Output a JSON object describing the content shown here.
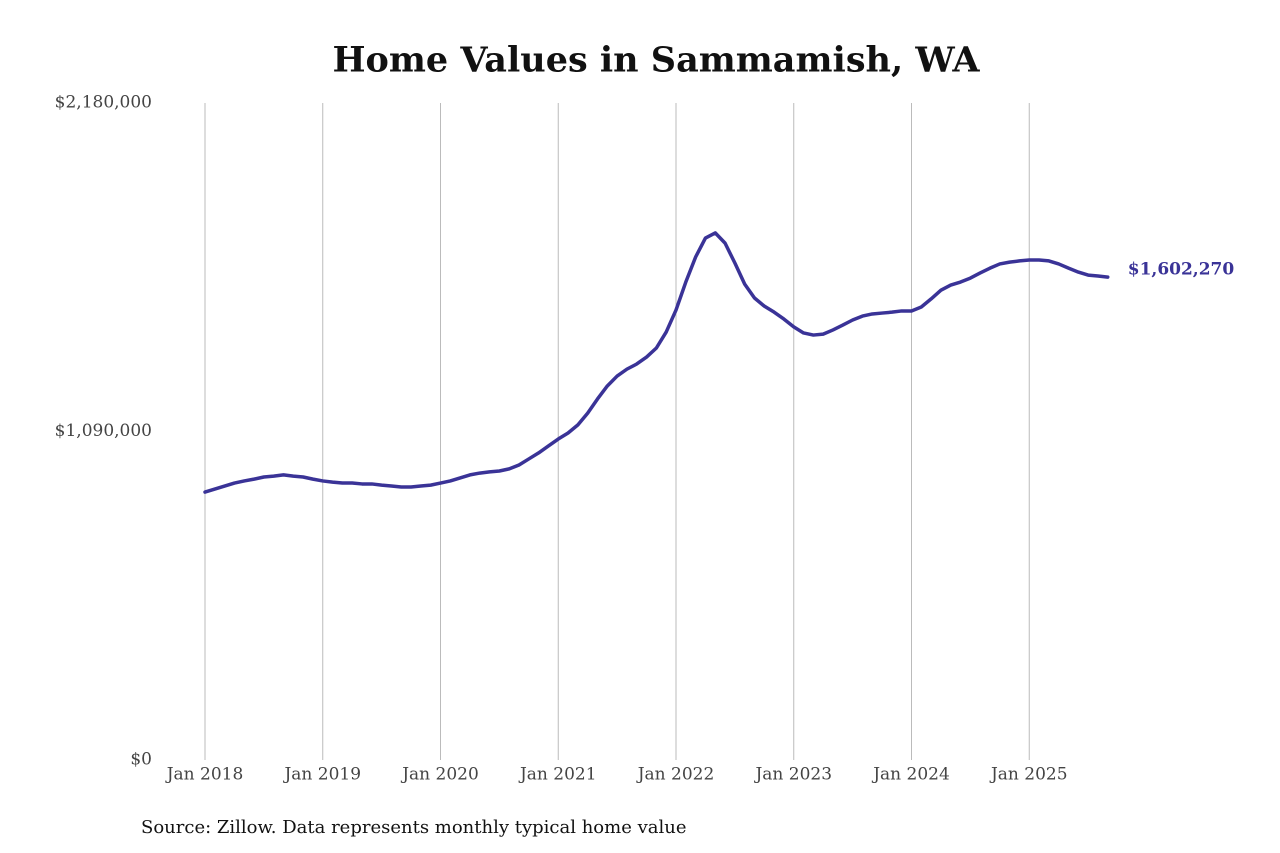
{
  "chart_data": {
    "type": "line",
    "title": "Home Values in Sammamish, WA",
    "source": "Source: Zillow. Data represents monthly typical home value",
    "categories": [
      "Jan 2018",
      null,
      null,
      null,
      null,
      null,
      null,
      null,
      null,
      null,
      null,
      null,
      "Jan 2019",
      null,
      null,
      null,
      null,
      null,
      null,
      null,
      null,
      null,
      null,
      null,
      "Jan 2020",
      null,
      null,
      null,
      null,
      null,
      null,
      null,
      null,
      null,
      null,
      null,
      "Jan 2021",
      null,
      null,
      null,
      null,
      null,
      null,
      null,
      null,
      null,
      null,
      null,
      "Jan 2022",
      null,
      null,
      null,
      null,
      null,
      null,
      null,
      null,
      null,
      null,
      null,
      "Jan 2023",
      null,
      null,
      null,
      null,
      null,
      null,
      null,
      null,
      null,
      null,
      null,
      "Jan 2024",
      null,
      null,
      null,
      null,
      null,
      null,
      null,
      null,
      null,
      null,
      null,
      "Jan 2025",
      null,
      null,
      null,
      null,
      null,
      null,
      null,
      null
    ],
    "values": [
      889000,
      899000,
      909000,
      919000,
      926000,
      932000,
      939000,
      942000,
      946000,
      942000,
      939000,
      932000,
      926000,
      922000,
      919000,
      919000,
      916000,
      916000,
      912000,
      909000,
      906000,
      906000,
      909000,
      912000,
      919000,
      926000,
      936000,
      946000,
      952000,
      956000,
      959000,
      966000,
      979000,
      999000,
      1019000,
      1042000,
      1065000,
      1085000,
      1112000,
      1151000,
      1198000,
      1241000,
      1274000,
      1297000,
      1314000,
      1337000,
      1367000,
      1420000,
      1493000,
      1586000,
      1669000,
      1732000,
      1749000,
      1715000,
      1649000,
      1579000,
      1533000,
      1506000,
      1486000,
      1463000,
      1437000,
      1417000,
      1410000,
      1413000,
      1427000,
      1443000,
      1460000,
      1473000,
      1480000,
      1483000,
      1486000,
      1490000,
      1490000,
      1503000,
      1530000,
      1559000,
      1576000,
      1586000,
      1599000,
      1616000,
      1632000,
      1646000,
      1652000,
      1656000,
      1659000,
      1659000,
      1656000,
      1646000,
      1632000,
      1619000,
      1609000,
      1606000,
      1602270
    ],
    "value_labels": [
      null,
      null,
      null,
      null,
      null,
      null,
      null,
      null,
      null,
      null,
      null,
      null,
      null,
      null,
      null,
      null,
      null,
      null,
      null,
      null,
      null,
      null,
      null,
      null,
      null,
      null,
      null,
      null,
      null,
      null,
      null,
      null,
      null,
      null,
      null,
      null,
      null,
      null,
      null,
      null,
      null,
      null,
      null,
      null,
      null,
      null,
      null,
      null,
      null,
      null,
      null,
      null,
      null,
      null,
      null,
      null,
      null,
      null,
      null,
      null,
      null,
      null,
      null,
      null,
      null,
      null,
      null,
      null,
      null,
      null,
      null,
      null,
      null,
      null,
      null,
      null,
      null,
      null,
      null,
      null,
      null,
      null,
      null,
      null,
      null,
      null,
      null,
      null,
      null,
      null,
      null,
      null,
      "$1,602,270"
    ],
    "color": "#3a3397",
    "ylim": [
      0,
      2180000
    ],
    "yticks": [
      {
        "value": 0,
        "label": "$0"
      },
      {
        "value": 1090000,
        "label": "$1,090,000"
      },
      {
        "value": 2180000,
        "label": "$2,180,000"
      }
    ],
    "grid": true
  }
}
